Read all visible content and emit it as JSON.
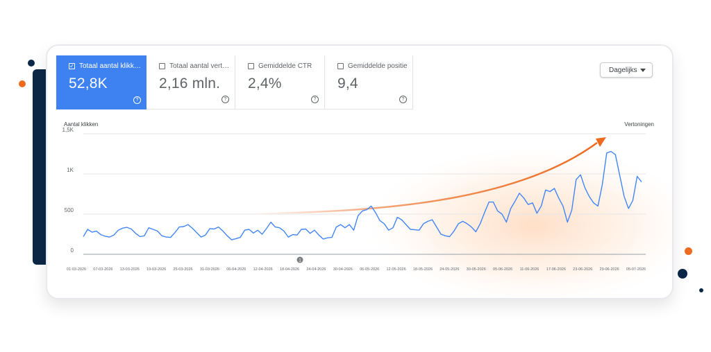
{
  "colors": {
    "navy": "#0d2748",
    "orange": "#ed6a1f",
    "blue": "#4285f4",
    "active_tile": "#3d82f0"
  },
  "metrics": [
    {
      "label": "Totaal aantal klikk…",
      "value": "52,8K",
      "checked": true,
      "help_icon": "question-circle-icon"
    },
    {
      "label": "Totaal aantal vert…",
      "value": "2,16 mln.",
      "checked": false,
      "help_icon": "question-circle-icon"
    },
    {
      "label": "Gemiddelde CTR",
      "value": "2,4%",
      "checked": false,
      "help_icon": "question-circle-icon"
    },
    {
      "label": "Gemiddelde positie",
      "value": "9,4",
      "checked": false,
      "help_icon": "question-circle-icon"
    }
  ],
  "granularity": {
    "selected": "Dagelijks",
    "icon": "caret-down-icon"
  },
  "chart_data": {
    "type": "line",
    "ylabel": "Aantal klikken",
    "y2label": "Vertoningen",
    "ylim": [
      0,
      1500
    ],
    "yticks": [
      {
        "value": 0,
        "label": "0"
      },
      {
        "value": 500,
        "label": "500"
      },
      {
        "value": 1000,
        "label": "1K"
      },
      {
        "value": 1500,
        "label": "1,5K"
      }
    ],
    "xtick_labels": [
      "01-03-2026",
      "07-03-2026",
      "13-03-2026",
      "19-03-2026",
      "25-03-2026",
      "31-03-2026",
      "06-04-2026",
      "12-04-2026",
      "18-04-2026",
      "24-04-2026",
      "30-04-2026",
      "06-05-2026",
      "12-05-2026",
      "18-05-2026",
      "24-05-2026",
      "30-05-2026",
      "05-06-2026",
      "11-06-2026",
      "17-06-2026",
      "23-06-2026",
      "29-06-2026",
      "05-07-2026"
    ],
    "annotation_marker": "1",
    "trend_arrow": "upward-trend-arrow",
    "grid": true,
    "series": [
      {
        "values": [
          220,
          310,
          275,
          290,
          245,
          225,
          215,
          240,
          300,
          325,
          335,
          315,
          260,
          220,
          230,
          330,
          310,
          290,
          230,
          215,
          210,
          270,
          340,
          345,
          370,
          325,
          270,
          215,
          240,
          320,
          315,
          340,
          290,
          230,
          180,
          195,
          210,
          300,
          310,
          265,
          300,
          250,
          320,
          400,
          340,
          330,
          290,
          215,
          245,
          240,
          310,
          315,
          260,
          300,
          240,
          190,
          205,
          210,
          340,
          370,
          330,
          370,
          300,
          480,
          540,
          555,
          600,
          520,
          420,
          380,
          300,
          330,
          460,
          430,
          370,
          310,
          305,
          300,
          380,
          410,
          430,
          340,
          250,
          230,
          220,
          290,
          380,
          410,
          380,
          340,
          280,
          380,
          520,
          650,
          650,
          540,
          500,
          400,
          570,
          660,
          760,
          700,
          620,
          640,
          510,
          600,
          800,
          780,
          820,
          700,
          600,
          400,
          550,
          930,
          990,
          830,
          720,
          640,
          600,
          870,
          1260,
          1280,
          1240,
          980,
          720,
          570,
          670,
          970,
          900
        ]
      }
    ]
  }
}
